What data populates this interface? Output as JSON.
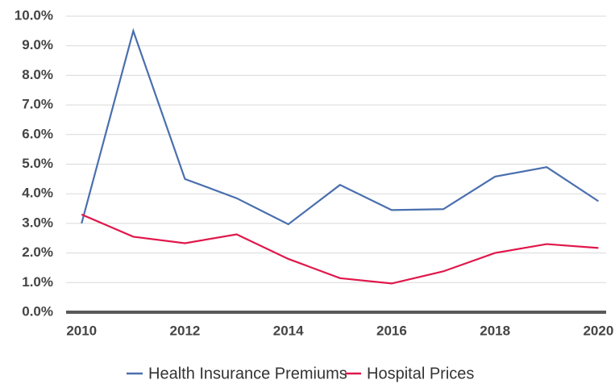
{
  "chart_data": {
    "type": "line",
    "x": [
      2010,
      2011,
      2012,
      2013,
      2014,
      2015,
      2016,
      2017,
      2018,
      2019,
      2020
    ],
    "series": [
      {
        "name": "Health Insurance Premiums",
        "color": "#4a6fae",
        "values": [
          3.0,
          9.5,
          4.5,
          3.85,
          2.97,
          4.3,
          3.45,
          3.48,
          4.58,
          4.9,
          3.75
        ]
      },
      {
        "name": "Hospital Prices",
        "color": "#e0174a",
        "values": [
          3.3,
          2.55,
          2.33,
          2.63,
          1.8,
          1.15,
          0.97,
          1.38,
          2.0,
          2.3,
          2.17
        ]
      }
    ],
    "xlim": [
      2009.7,
      2020.15
    ],
    "xticks": [
      2010,
      2012,
      2014,
      2016,
      2018,
      2020
    ],
    "ylim": [
      0,
      10
    ],
    "yticks": [
      {
        "value": 0,
        "label": "0.0%"
      },
      {
        "value": 1,
        "label": "1.0%"
      },
      {
        "value": 2,
        "label": "2.0%"
      },
      {
        "value": 3,
        "label": "3.0%"
      },
      {
        "value": 4,
        "label": "4.0%"
      },
      {
        "value": 5,
        "label": "5.0%"
      },
      {
        "value": 6,
        "label": "6.0%"
      },
      {
        "value": 7,
        "label": "7.0%"
      },
      {
        "value": 8,
        "label": "8.0%"
      },
      {
        "value": 9,
        "label": "9.0%"
      },
      {
        "value": 10,
        "label": "10.0%"
      }
    ],
    "grid": true,
    "legend": "bottom"
  }
}
